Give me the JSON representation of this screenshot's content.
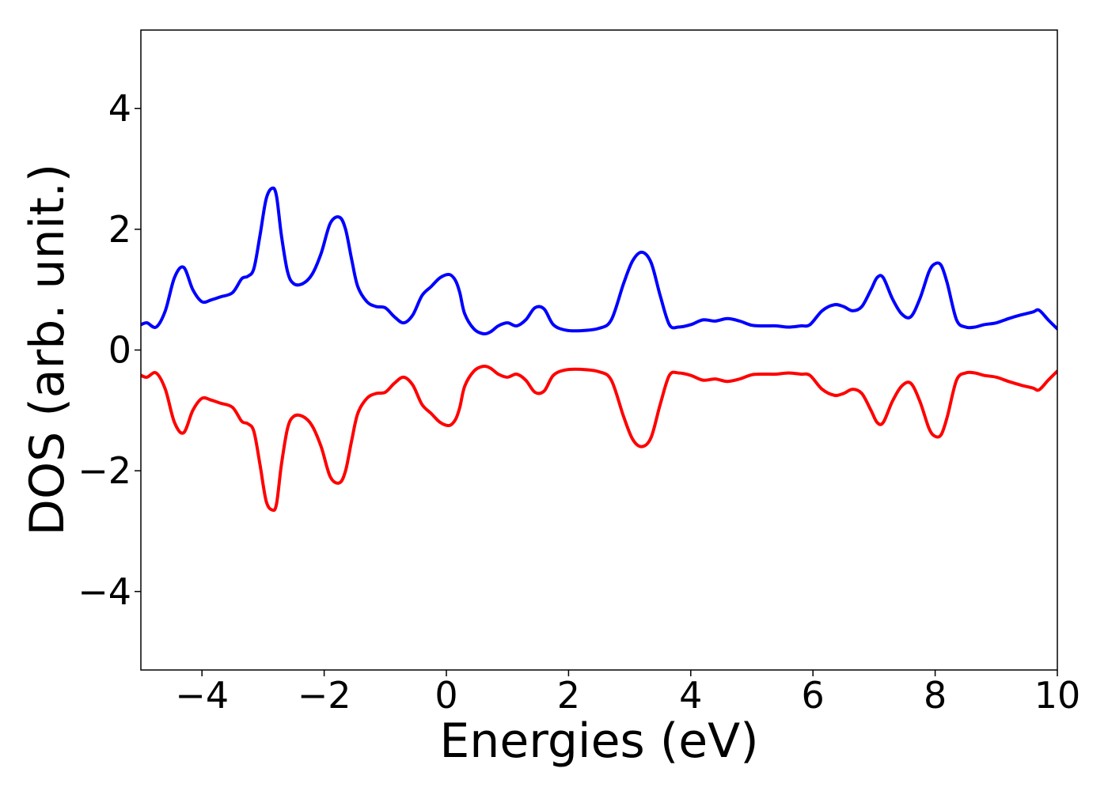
{
  "chart_data": {
    "type": "line",
    "title": "",
    "xlabel": "Energies (eV)",
    "ylabel": "DOS (arb. unit.)",
    "xlim": [
      -5,
      10
    ],
    "ylim": [
      -5.3,
      5.3
    ],
    "xticks": [
      {
        "value": -4,
        "label": "−4"
      },
      {
        "value": -2,
        "label": "−2"
      },
      {
        "value": 0,
        "label": "0"
      },
      {
        "value": 2,
        "label": "2"
      },
      {
        "value": 4,
        "label": "4"
      },
      {
        "value": 6,
        "label": "6"
      },
      {
        "value": 8,
        "label": "8"
      },
      {
        "value": 10,
        "label": "10"
      }
    ],
    "yticks": [
      {
        "value": -4,
        "label": "−4"
      },
      {
        "value": -2,
        "label": "−2"
      },
      {
        "value": 0,
        "label": "0"
      },
      {
        "value": 2,
        "label": "2"
      },
      {
        "value": 4,
        "label": "4"
      }
    ],
    "grid": false,
    "legend": "none",
    "series": [
      {
        "color": "#0000ff",
        "x": [
          -5.0,
          -4.9,
          -4.75,
          -4.6,
          -4.45,
          -4.3,
          -4.15,
          -4.0,
          -3.85,
          -3.7,
          -3.5,
          -3.35,
          -3.25,
          -3.15,
          -3.05,
          -2.95,
          -2.85,
          -2.78,
          -2.7,
          -2.6,
          -2.5,
          -2.35,
          -2.2,
          -2.05,
          -1.9,
          -1.75,
          -1.65,
          -1.55,
          -1.45,
          -1.3,
          -1.15,
          -1.0,
          -0.85,
          -0.7,
          -0.55,
          -0.4,
          -0.25,
          -0.1,
          0.05,
          0.15,
          0.22,
          0.3,
          0.45,
          0.6,
          0.72,
          0.85,
          1.0,
          1.15,
          1.3,
          1.45,
          1.6,
          1.75,
          1.95,
          2.2,
          2.5,
          2.7,
          2.9,
          3.05,
          3.2,
          3.35,
          3.5,
          3.65,
          3.8,
          4.0,
          4.2,
          4.4,
          4.6,
          4.8,
          5.0,
          5.2,
          5.4,
          5.6,
          5.8,
          5.95,
          6.15,
          6.35,
          6.5,
          6.65,
          6.8,
          6.95,
          7.05,
          7.15,
          7.3,
          7.45,
          7.6,
          7.75,
          7.9,
          8.0,
          8.1,
          8.2,
          8.35,
          8.5,
          8.65,
          8.8,
          9.0,
          9.2,
          9.4,
          9.6,
          9.7,
          9.85,
          10.0
        ],
        "values": [
          0.42,
          0.45,
          0.38,
          0.65,
          1.2,
          1.37,
          1.0,
          0.8,
          0.83,
          0.88,
          0.95,
          1.18,
          1.22,
          1.35,
          1.9,
          2.5,
          2.68,
          2.55,
          1.9,
          1.3,
          1.1,
          1.1,
          1.25,
          1.6,
          2.1,
          2.2,
          2.0,
          1.5,
          1.05,
          0.8,
          0.72,
          0.7,
          0.55,
          0.45,
          0.58,
          0.9,
          1.05,
          1.2,
          1.25,
          1.15,
          0.95,
          0.6,
          0.35,
          0.27,
          0.3,
          0.4,
          0.45,
          0.4,
          0.5,
          0.7,
          0.68,
          0.42,
          0.33,
          0.32,
          0.36,
          0.5,
          1.1,
          1.48,
          1.62,
          1.45,
          0.9,
          0.42,
          0.38,
          0.42,
          0.5,
          0.48,
          0.52,
          0.48,
          0.41,
          0.4,
          0.4,
          0.38,
          0.4,
          0.42,
          0.65,
          0.75,
          0.72,
          0.65,
          0.72,
          1.0,
          1.2,
          1.2,
          0.85,
          0.6,
          0.55,
          0.85,
          1.3,
          1.43,
          1.4,
          1.1,
          0.5,
          0.38,
          0.38,
          0.42,
          0.45,
          0.52,
          0.58,
          0.63,
          0.66,
          0.5,
          0.35
        ]
      },
      {
        "color": "#ff0000",
        "x": [
          -5.0,
          -4.9,
          -4.75,
          -4.6,
          -4.45,
          -4.3,
          -4.15,
          -4.0,
          -3.85,
          -3.7,
          -3.5,
          -3.35,
          -3.25,
          -3.15,
          -3.05,
          -2.95,
          -2.85,
          -2.78,
          -2.7,
          -2.6,
          -2.5,
          -2.35,
          -2.2,
          -2.05,
          -1.9,
          -1.75,
          -1.65,
          -1.55,
          -1.45,
          -1.3,
          -1.15,
          -1.0,
          -0.85,
          -0.7,
          -0.55,
          -0.4,
          -0.25,
          -0.1,
          0.05,
          0.15,
          0.22,
          0.3,
          0.45,
          0.6,
          0.72,
          0.85,
          1.0,
          1.15,
          1.3,
          1.45,
          1.6,
          1.75,
          1.95,
          2.2,
          2.5,
          2.7,
          2.9,
          3.05,
          3.2,
          3.35,
          3.5,
          3.65,
          3.8,
          4.0,
          4.2,
          4.4,
          4.6,
          4.8,
          5.0,
          5.2,
          5.4,
          5.6,
          5.8,
          5.95,
          6.15,
          6.35,
          6.5,
          6.65,
          6.8,
          6.95,
          7.05,
          7.15,
          7.3,
          7.45,
          7.6,
          7.75,
          7.9,
          8.0,
          8.1,
          8.2,
          8.35,
          8.5,
          8.65,
          8.8,
          9.0,
          9.2,
          9.4,
          9.6,
          9.7,
          9.85,
          10.0
        ],
        "values": [
          -0.42,
          -0.45,
          -0.38,
          -0.65,
          -1.2,
          -1.37,
          -1.0,
          -0.8,
          -0.83,
          -0.88,
          -0.95,
          -1.18,
          -1.22,
          -1.35,
          -1.9,
          -2.5,
          -2.65,
          -2.55,
          -1.9,
          -1.3,
          -1.1,
          -1.1,
          -1.25,
          -1.6,
          -2.1,
          -2.2,
          -2.0,
          -1.5,
          -1.05,
          -0.8,
          -0.72,
          -0.7,
          -0.55,
          -0.45,
          -0.58,
          -0.9,
          -1.05,
          -1.2,
          -1.25,
          -1.15,
          -0.95,
          -0.6,
          -0.35,
          -0.27,
          -0.3,
          -0.4,
          -0.45,
          -0.4,
          -0.5,
          -0.7,
          -0.68,
          -0.42,
          -0.33,
          -0.32,
          -0.36,
          -0.5,
          -1.1,
          -1.48,
          -1.6,
          -1.45,
          -0.9,
          -0.42,
          -0.38,
          -0.42,
          -0.5,
          -0.48,
          -0.52,
          -0.48,
          -0.41,
          -0.4,
          -0.4,
          -0.38,
          -0.4,
          -0.42,
          -0.65,
          -0.75,
          -0.72,
          -0.65,
          -0.72,
          -1.0,
          -1.2,
          -1.2,
          -0.85,
          -0.6,
          -0.55,
          -0.85,
          -1.3,
          -1.43,
          -1.4,
          -1.1,
          -0.5,
          -0.38,
          -0.38,
          -0.42,
          -0.45,
          -0.52,
          -0.58,
          -0.63,
          -0.66,
          -0.5,
          -0.35
        ]
      }
    ]
  }
}
